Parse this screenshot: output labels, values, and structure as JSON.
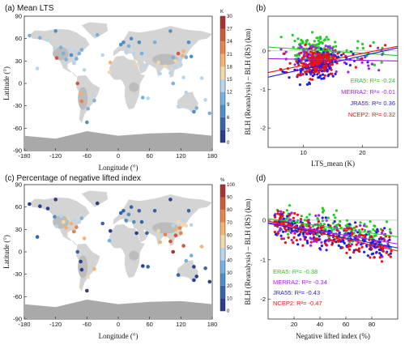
{
  "panels": {
    "a": {
      "title": "(a) Mean LTS",
      "xlabel": "Longitude (°)",
      "ylabel": "Latitude (°)",
      "colorbar_unit": "K"
    },
    "b": {
      "title": "(b)",
      "xlabel": "LTS_mean (K)",
      "ylabel": "BLH (Reanalysis) – BLH (RS) (km)"
    },
    "c": {
      "title": "(c) Percentage of negative lifted index",
      "xlabel": "Longitude (°)",
      "ylabel": "Latitude (°)",
      "colorbar_unit": "%"
    },
    "d": {
      "title": "(d)",
      "xlabel": "Negative lifted index (%)",
      "ylabel": "BLH (Reanalysis) – BLH (RS) (km)"
    }
  },
  "colors": {
    "ERA5": "#22cc22",
    "MERRA2": "#a020f0",
    "JRA55": "#1f1fe0",
    "NCEP2": "#ee1111"
  },
  "chart_data": [
    {
      "type": "heatmap",
      "panel": "a",
      "title": "(a) Mean LTS",
      "xlabel": "Longitude (°)",
      "ylabel": "Latitude (°)",
      "xlim": [
        -180,
        180
      ],
      "ylim": [
        -90,
        90
      ],
      "x_ticks": [
        "-180",
        "-120",
        "-60",
        "0",
        "60",
        "120",
        "180"
      ],
      "y_ticks": [
        "90",
        "60",
        "30",
        "0",
        "-30",
        "-60",
        "-90"
      ],
      "colorbar": {
        "unit": "K",
        "ticks": [
          "30",
          "27",
          "24",
          "21",
          "18",
          "15",
          "12",
          "9",
          "6",
          "3",
          "0"
        ]
      },
      "stations": [
        {
          "lon": -150,
          "lat": 61,
          "v": 10
        },
        {
          "lon": -135,
          "lat": 58,
          "v": 12
        },
        {
          "lon": -122,
          "lat": 47,
          "v": 14
        },
        {
          "lon": -118,
          "lat": 34,
          "v": 25
        },
        {
          "lon": -105,
          "lat": 40,
          "v": 11
        },
        {
          "lon": -100,
          "lat": 32,
          "v": 9
        },
        {
          "lon": -95,
          "lat": 45,
          "v": 13
        },
        {
          "lon": -90,
          "lat": 38,
          "v": 8
        },
        {
          "lon": -85,
          "lat": 43,
          "v": 12
        },
        {
          "lon": -80,
          "lat": 33,
          "v": 9
        },
        {
          "lon": -75,
          "lat": 40,
          "v": 11
        },
        {
          "lon": -70,
          "lat": 45,
          "v": 10
        },
        {
          "lon": -110,
          "lat": 48,
          "v": 10
        },
        {
          "lon": -85,
          "lat": 27,
          "v": 13
        },
        {
          "lon": -78,
          "lat": 0,
          "v": 26
        },
        {
          "lon": -72,
          "lat": -13,
          "v": 18
        },
        {
          "lon": -70,
          "lat": -24,
          "v": 22
        },
        {
          "lon": -58,
          "lat": -34,
          "v": 10
        },
        {
          "lon": -46,
          "lat": -23,
          "v": 9
        },
        {
          "lon": -60,
          "lat": -52,
          "v": 7
        },
        {
          "lon": -65,
          "lat": 18,
          "v": 13
        },
        {
          "lon": -30,
          "lat": 38,
          "v": 14
        },
        {
          "lon": -15,
          "lat": 28,
          "v": 18
        },
        {
          "lon": -17,
          "lat": 15,
          "v": 16
        },
        {
          "lon": 5,
          "lat": 52,
          "v": 7
        },
        {
          "lon": 10,
          "lat": 55,
          "v": 8
        },
        {
          "lon": 20,
          "lat": 50,
          "v": 9
        },
        {
          "lon": 25,
          "lat": 60,
          "v": 7
        },
        {
          "lon": 15,
          "lat": 42,
          "v": 12
        },
        {
          "lon": 30,
          "lat": 40,
          "v": 13
        },
        {
          "lon": 40,
          "lat": 55,
          "v": 8
        },
        {
          "lon": 45,
          "lat": 40,
          "v": 10
        },
        {
          "lon": 55,
          "lat": 25,
          "v": 12
        },
        {
          "lon": 35,
          "lat": 25,
          "v": 15
        },
        {
          "lon": 47,
          "lat": -19,
          "v": 11
        },
        {
          "lon": 57,
          "lat": -20,
          "v": 13
        },
        {
          "lon": 77,
          "lat": 28,
          "v": 16
        },
        {
          "lon": 80,
          "lat": 13,
          "v": 14
        },
        {
          "lon": 90,
          "lat": 23,
          "v": 15
        },
        {
          "lon": 100,
          "lat": 14,
          "v": 14
        },
        {
          "lon": 105,
          "lat": 35,
          "v": 11
        },
        {
          "lon": 110,
          "lat": 30,
          "v": 15
        },
        {
          "lon": 115,
          "lat": 40,
          "v": 24
        },
        {
          "lon": 118,
          "lat": 32,
          "v": 14
        },
        {
          "lon": 120,
          "lat": 25,
          "v": 13
        },
        {
          "lon": 125,
          "lat": 43,
          "v": 20
        },
        {
          "lon": 130,
          "lat": 35,
          "v": 9
        },
        {
          "lon": 140,
          "lat": 36,
          "v": 8
        },
        {
          "lon": 123,
          "lat": 37,
          "v": 18
        },
        {
          "lon": 110,
          "lat": 22,
          "v": 12
        },
        {
          "lon": 125,
          "lat": 8,
          "v": 13
        },
        {
          "lon": 105,
          "lat": 0,
          "v": 11
        },
        {
          "lon": 115,
          "lat": -31,
          "v": 12
        },
        {
          "lon": 130,
          "lat": -12,
          "v": 14
        },
        {
          "lon": 150,
          "lat": -33,
          "v": 9
        },
        {
          "lon": 145,
          "lat": -38,
          "v": 8
        },
        {
          "lon": 175,
          "lat": -40,
          "v": 10
        },
        {
          "lon": 167,
          "lat": -22,
          "v": 12
        },
        {
          "lon": 160,
          "lat": 7,
          "v": 13
        },
        {
          "lon": 135,
          "lat": 55,
          "v": 8
        },
        {
          "lon": -170,
          "lat": 64,
          "v": 9
        },
        {
          "lon": -155,
          "lat": 20,
          "v": 14
        },
        {
          "lon": -120,
          "lat": 70,
          "v": 8
        },
        {
          "lon": 100,
          "lat": 70,
          "v": 7
        },
        {
          "lon": 70,
          "lat": 55,
          "v": 9
        },
        {
          "lon": -40,
          "lat": 65,
          "v": 9
        }
      ]
    },
    {
      "type": "scatter",
      "panel": "b",
      "title": "(b)",
      "xlabel": "LTS_mean (K)",
      "ylabel": "BLH (Reanalysis) – BLH (RS) (km)",
      "xlim": [
        4,
        26
      ],
      "ylim": [
        -2.5,
        0.9
      ],
      "x_ticks": [
        10,
        20
      ],
      "y_ticks": [
        0,
        -1,
        -2
      ],
      "series": [
        {
          "name": "ERA5",
          "label": "ERA5: R²= -0.24",
          "fit": {
            "x0": 4,
            "y0": 0.1,
            "x1": 26,
            "y1": -0.12
          }
        },
        {
          "name": "MERRA2",
          "label": "MERRA2: R²= -0.01",
          "fit": {
            "x0": 4,
            "y0": -0.2,
            "x1": 26,
            "y1": -0.26
          }
        },
        {
          "name": "JRA55",
          "label": "JRA55: R²= 0.36",
          "fit": {
            "x0": 4,
            "y0": -0.68,
            "x1": 26,
            "y1": 0.08
          }
        },
        {
          "name": "NCEP2",
          "label": "NCEP2: R²= 0.32",
          "fit": {
            "x0": 4,
            "y0": -0.56,
            "x1": 26,
            "y1": 0.12
          }
        }
      ]
    },
    {
      "type": "heatmap",
      "panel": "c",
      "title": "(c) Percentage of negative lifted index",
      "xlabel": "Longitude (°)",
      "ylabel": "Latitude (°)",
      "xlim": [
        -180,
        180
      ],
      "ylim": [
        -90,
        90
      ],
      "x_ticks": [
        "-180",
        "-120",
        "-60",
        "0",
        "60",
        "120",
        "180"
      ],
      "y_ticks": [
        "90",
        "60",
        "30",
        "0",
        "-30",
        "-60",
        "-90"
      ],
      "colorbar": {
        "unit": "%",
        "ticks": [
          "100",
          "90",
          "80",
          "70",
          "60",
          "50",
          "40",
          "30",
          "20",
          "10",
          "0"
        ]
      },
      "stations": [
        {
          "lon": -150,
          "lat": 61,
          "v": 8
        },
        {
          "lon": -135,
          "lat": 58,
          "v": 5
        },
        {
          "lon": -122,
          "lat": 47,
          "v": 25
        },
        {
          "lon": -118,
          "lat": 34,
          "v": 40
        },
        {
          "lon": -105,
          "lat": 40,
          "v": 55
        },
        {
          "lon": -100,
          "lat": 32,
          "v": 60
        },
        {
          "lon": -95,
          "lat": 45,
          "v": 50
        },
        {
          "lon": -90,
          "lat": 38,
          "v": 65
        },
        {
          "lon": -85,
          "lat": 43,
          "v": 45
        },
        {
          "lon": -80,
          "lat": 33,
          "v": 70
        },
        {
          "lon": -75,
          "lat": 40,
          "v": 45
        },
        {
          "lon": -70,
          "lat": 45,
          "v": 30
        },
        {
          "lon": -110,
          "lat": 48,
          "v": 40
        },
        {
          "lon": -85,
          "lat": 27,
          "v": 75
        },
        {
          "lon": -78,
          "lat": 0,
          "v": 15
        },
        {
          "lon": -72,
          "lat": -13,
          "v": 5
        },
        {
          "lon": -70,
          "lat": -24,
          "v": 3
        },
        {
          "lon": -58,
          "lat": -34,
          "v": 55
        },
        {
          "lon": -46,
          "lat": -23,
          "v": 60
        },
        {
          "lon": -60,
          "lat": -52,
          "v": 2
        },
        {
          "lon": -65,
          "lat": 18,
          "v": 60
        },
        {
          "lon": -30,
          "lat": 38,
          "v": 10
        },
        {
          "lon": -15,
          "lat": 28,
          "v": 5
        },
        {
          "lon": -17,
          "lat": 15,
          "v": 30
        },
        {
          "lon": 5,
          "lat": 52,
          "v": 15
        },
        {
          "lon": 10,
          "lat": 55,
          "v": 12
        },
        {
          "lon": 20,
          "lat": 50,
          "v": 20
        },
        {
          "lon": 25,
          "lat": 60,
          "v": 10
        },
        {
          "lon": 15,
          "lat": 42,
          "v": 25
        },
        {
          "lon": 30,
          "lat": 40,
          "v": 22
        },
        {
          "lon": 40,
          "lat": 55,
          "v": 15
        },
        {
          "lon": 45,
          "lat": 40,
          "v": 18
        },
        {
          "lon": 55,
          "lat": 25,
          "v": 10
        },
        {
          "lon": 35,
          "lat": 25,
          "v": 5
        },
        {
          "lon": 47,
          "lat": -19,
          "v": 5
        },
        {
          "lon": 57,
          "lat": -20,
          "v": 15
        },
        {
          "lon": 77,
          "lat": 28,
          "v": 55
        },
        {
          "lon": 80,
          "lat": 13,
          "v": 60
        },
        {
          "lon": 90,
          "lat": 23,
          "v": 70
        },
        {
          "lon": 100,
          "lat": 14,
          "v": 80
        },
        {
          "lon": 105,
          "lat": 35,
          "v": 45
        },
        {
          "lon": 110,
          "lat": 30,
          "v": 65
        },
        {
          "lon": 115,
          "lat": 40,
          "v": 55
        },
        {
          "lon": 118,
          "lat": 32,
          "v": 70
        },
        {
          "lon": 120,
          "lat": 25,
          "v": 75
        },
        {
          "lon": 125,
          "lat": 43,
          "v": 40
        },
        {
          "lon": 130,
          "lat": 35,
          "v": 50
        },
        {
          "lon": 140,
          "lat": 36,
          "v": 45
        },
        {
          "lon": 123,
          "lat": 37,
          "v": 55
        },
        {
          "lon": 110,
          "lat": 22,
          "v": 80
        },
        {
          "lon": 125,
          "lat": 8,
          "v": 85
        },
        {
          "lon": 105,
          "lat": 0,
          "v": 90
        },
        {
          "lon": 115,
          "lat": -31,
          "v": 10
        },
        {
          "lon": 130,
          "lat": -12,
          "v": 30
        },
        {
          "lon": 150,
          "lat": -33,
          "v": 8
        },
        {
          "lon": 145,
          "lat": -38,
          "v": 5
        },
        {
          "lon": 175,
          "lat": -40,
          "v": 4
        },
        {
          "lon": 167,
          "lat": -22,
          "v": 15
        },
        {
          "lon": 160,
          "lat": 7,
          "v": 60
        },
        {
          "lon": 135,
          "lat": 55,
          "v": 12
        },
        {
          "lon": -170,
          "lat": 64,
          "v": 3
        },
        {
          "lon": -155,
          "lat": 20,
          "v": 12
        },
        {
          "lon": -120,
          "lat": 70,
          "v": 4
        },
        {
          "lon": 100,
          "lat": 70,
          "v": 3
        },
        {
          "lon": 70,
          "lat": 55,
          "v": 12
        },
        {
          "lon": -40,
          "lat": 65,
          "v": 3
        },
        {
          "lon": 140,
          "lat": -5,
          "v": 30
        },
        {
          "lon": 145,
          "lat": -20,
          "v": 8
        }
      ]
    },
    {
      "type": "scatter",
      "panel": "d",
      "title": "(d)",
      "xlabel": "Negative lifted index (%)",
      "ylabel": "BLH (Reanalysis) – BLH (RS) (km)",
      "xlim": [
        0,
        100
      ],
      "ylim": [
        -2.5,
        0.9
      ],
      "x_ticks": [
        20,
        40,
        60,
        80
      ],
      "y_ticks": [
        0,
        -1,
        -2
      ],
      "series": [
        {
          "name": "ERA5",
          "label": "ERA5: R²= -0.38",
          "fit": {
            "x0": 0,
            "y0": 0.04,
            "x1": 100,
            "y1": -0.42
          }
        },
        {
          "name": "MERRA2",
          "label": "MERRA2: R²= -0.34",
          "fit": {
            "x0": 0,
            "y0": -0.06,
            "x1": 100,
            "y1": -0.6
          }
        },
        {
          "name": "JRA55",
          "label": "JRA55: R²= -0.43",
          "fit": {
            "x0": 0,
            "y0": -0.08,
            "x1": 100,
            "y1": -0.7
          }
        },
        {
          "name": "NCEP2",
          "label": "NCEP2: R²= -0.47",
          "fit": {
            "x0": 0,
            "y0": -0.02,
            "x1": 100,
            "y1": -0.78
          }
        }
      ]
    }
  ]
}
